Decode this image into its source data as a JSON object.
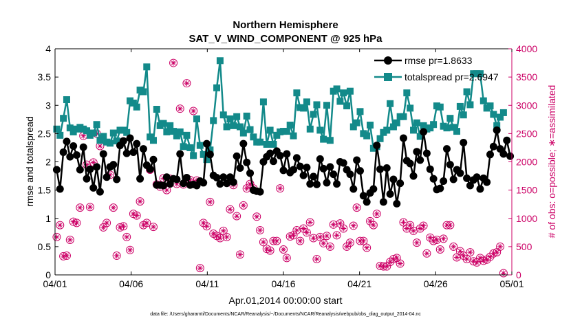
{
  "chart_data": {
    "type": "line",
    "title": "Northern Hemisphere",
    "subtitle": "SAT_V_WIND_COMPONENT @ 925 hPa",
    "xlabel": "Apr.01,2014 00:00:00 start",
    "ylabel_left": "rmse and totalspread",
    "ylabel_right": "# of obs: o=possible; ∗=assimilated",
    "footer": "data file: /Users/gharamti/Documents/NCAR/Reanalysis/~/Documents/NCAR/Reanalysis/webpub/obs_diag_output_2014-04.nc",
    "x_ticks": [
      "04/01",
      "04/06",
      "04/11",
      "04/16",
      "04/21",
      "04/26",
      "05/01"
    ],
    "xlim": [
      0,
      30
    ],
    "ylim_left": [
      0,
      4
    ],
    "ylim_right": [
      0,
      4000
    ],
    "y_ticks_left": [
      "0",
      "0.5",
      "1",
      "1.5",
      "2",
      "2.5",
      "3",
      "3.5",
      "4"
    ],
    "y_ticks_right": [
      "0",
      "500",
      "1000",
      "1500",
      "2000",
      "2500",
      "3000",
      "3500",
      "4000"
    ],
    "colors": {
      "rmse": "#000000",
      "spread": "#138a8a",
      "obs": "#cc0066",
      "axis_left": "#000000",
      "axis_right": "#cc0066"
    },
    "legend_location": "top-right",
    "series": [
      {
        "name": "rmse pr=1.8633",
        "axis": "left",
        "marker": "circle",
        "values": [
          1.86,
          1.52,
          2.17,
          2.36,
          2.09,
          2.28,
          2.12,
          1.86,
          2.26,
          1.7,
          1.87,
          1.54,
          1.91,
          1.47,
          2.14,
          1.73,
          1.91,
          1.95,
          1.69,
          2.29,
          2.37,
          2.15,
          2.42,
          2.17,
          2.32,
          1.7,
          2.23,
          1.94,
          1.87,
          2.04,
          1.59,
          1.59,
          1.58,
          1.73,
          1.61,
          1.7,
          1.69,
          2.14,
          1.62,
          1.72,
          1.59,
          1.6,
          1.58,
          1.66,
          1.63,
          2.32,
          2.13,
          1.76,
          1.72,
          1.61,
          1.73,
          1.62,
          1.73,
          1.64,
          2.1,
          1.89,
          2.32,
          1.99,
          1.8,
          1.5,
          1.48,
          1.47,
          2.0,
          2.09,
          2.15,
          2.01,
          2.19,
          2.11,
          1.85,
          2.14,
          1.81,
          1.86,
          2.07,
          1.92,
          1.76,
          1.9,
          1.61,
          1.74,
          1.6,
          2.05,
          1.88,
          1.63,
          1.91,
          1.78,
          1.61,
          2.0,
          1.98,
          1.86,
          1.78,
          1.52,
          2.03,
          1.84,
          1.4,
          1.29,
          1.45,
          1.52,
          2.29,
          1.87,
          1.29,
          1.89,
          1.43,
          1.69,
          1.26,
          1.62,
          2.42,
          2.02,
          1.97,
          1.75,
          2.18,
          2.03,
          2.53,
          2.15,
          1.87,
          1.7,
          1.51,
          1.53,
          1.66,
          2.23,
          1.95,
          1.69,
          1.86,
          1.8,
          2.34,
          1.71,
          1.58,
          1.68,
          1.73,
          1.52,
          1.71,
          1.64,
          2.13,
          2.27,
          2.56,
          2.23,
          2.14,
          2.38,
          2.1
        ]
      },
      {
        "name": "totalspread pr=2.6947",
        "axis": "left",
        "marker": "square",
        "values": [
          2.58,
          2.47,
          2.77,
          3.1,
          2.6,
          2.53,
          2.58,
          2.61,
          2.58,
          2.55,
          2.47,
          2.51,
          2.66,
          2.38,
          2.45,
          2.35,
          2.33,
          2.51,
          2.37,
          2.56,
          2.56,
          2.52,
          3.08,
          3.04,
          2.97,
          3.27,
          3.24,
          3.68,
          2.44,
          2.38,
          2.93,
          2.64,
          2.68,
          2.53,
          2.64,
          2.54,
          2.46,
          2.53,
          2.27,
          2.47,
          2.25,
          2.11,
          2.76,
          2.29,
          2.13,
          2.04,
          2.21,
          2.73,
          3.31,
          3.79,
          2.83,
          2.62,
          2.76,
          2.64,
          2.8,
          2.62,
          2.51,
          2.81,
          2.57,
          2.44,
          2.35,
          2.35,
          3.06,
          2.31,
          2.56,
          2.31,
          2.47,
          2.53,
          2.54,
          2.54,
          2.65,
          2.46,
          3.22,
          2.96,
          2.95,
          3.06,
          2.58,
          2.84,
          3.01,
          2.56,
          2.4,
          3.0,
          2.38,
          3.25,
          3.29,
          3.07,
          3.22,
          2.99,
          3.25,
          2.62,
          2.69,
          2.89,
          2.5,
          2.46,
          2.65,
          2.24,
          2.27,
          2.41,
          2.52,
          2.56,
          3.03,
          2.62,
          2.69,
          2.8,
          2.8,
          3.22,
          2.95,
          2.56,
          2.69,
          2.45,
          2.64,
          2.58,
          2.6,
          2.66,
          2.99,
          2.97,
          2.63,
          2.6,
          2.77,
          2.61,
          2.54,
          2.98,
          2.83,
          3.24,
          3.01,
          3.56,
          3.56,
          3.56,
          3.08,
          2.95,
          2.99,
          2.84,
          2.64,
          2.79,
          2.87
        ]
      },
      {
        "name": "possible",
        "axis": "right",
        "marker": "circle-open",
        "values": [
          670,
          880,
          330,
          340,
          620,
          940,
          920,
          1190,
          2460,
          1950,
          1200,
          1990,
          2500,
          2280,
          840,
          920,
          1770,
          1190,
          340,
          840,
          860,
          670,
          440,
          1080,
          1050,
          1300,
          880,
          920,
          1860,
          850,
          1600,
          1560,
          1710,
          1500,
          1700,
          3750,
          1610,
          2940,
          1600,
          3390,
          1680,
          2900,
          1670,
          120,
          920,
          860,
          1290,
          730,
          690,
          650,
          780,
          670,
          1160,
          1590,
          1040,
          360,
          1230,
          1530,
          1610,
          1530,
          1030,
          790,
          580,
          460,
          430,
          600,
          600,
          1530,
          450,
          300,
          680,
          700,
          790,
          600,
          820,
          750,
          930,
          650,
          280,
          670,
          560,
          690,
          500,
          890,
          700,
          910,
          820,
          500,
          570,
          870,
          1190,
          600,
          600,
          480,
          950,
          880,
          1080,
          160,
          150,
          150,
          230,
          280,
          300,
          200,
          930,
          820,
          880,
          780,
          570,
          820,
          870,
          380,
          660,
          600,
          620,
          450,
          640,
          880,
          880,
          500,
          310,
          420,
          340,
          280,
          400,
          240,
          220,
          300,
          250,
          270,
          320,
          380,
          400,
          500,
          30
        ]
      },
      {
        "name": "assimilated",
        "axis": "right",
        "marker": "asterisk",
        "values": [
          670,
          880,
          330,
          340,
          620,
          940,
          920,
          1190,
          2460,
          1950,
          1200,
          1990,
          2500,
          2280,
          840,
          920,
          1770,
          1190,
          340,
          840,
          860,
          670,
          440,
          1080,
          1050,
          1300,
          880,
          920,
          1860,
          850,
          1600,
          1560,
          1710,
          1500,
          1700,
          3750,
          1610,
          2940,
          1600,
          3390,
          1680,
          2900,
          1670,
          120,
          920,
          860,
          1290,
          730,
          690,
          650,
          780,
          670,
          1160,
          1590,
          1040,
          360,
          1230,
          1530,
          1610,
          1530,
          1030,
          790,
          580,
          460,
          430,
          600,
          600,
          1530,
          450,
          300,
          680,
          700,
          790,
          600,
          820,
          750,
          930,
          650,
          280,
          670,
          560,
          690,
          500,
          890,
          700,
          910,
          820,
          500,
          570,
          870,
          1190,
          600,
          600,
          480,
          950,
          880,
          1080,
          160,
          150,
          150,
          230,
          280,
          300,
          200,
          930,
          820,
          880,
          780,
          570,
          820,
          870,
          380,
          660,
          600,
          620,
          450,
          640,
          880,
          880,
          500,
          310,
          420,
          340,
          280,
          400,
          240,
          220,
          300,
          250,
          270,
          320,
          380,
          400,
          500,
          30
        ]
      }
    ]
  }
}
